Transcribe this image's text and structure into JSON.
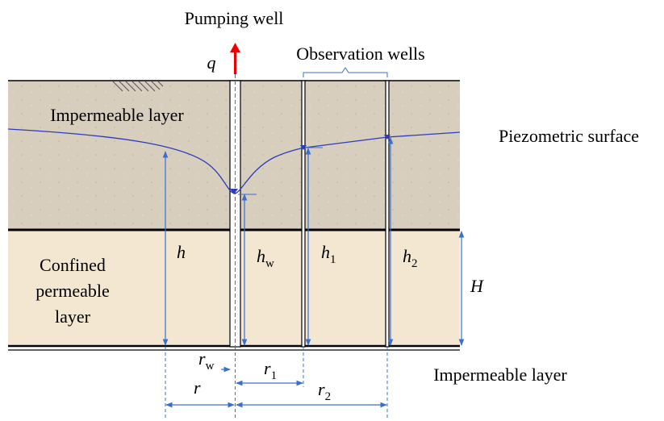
{
  "title": "Pumping well",
  "flow_symbol": "q",
  "observation_label": "Observation wells",
  "layers": {
    "top": "Impermeable layer",
    "confined": [
      "Confined",
      "permeable",
      "layer"
    ],
    "bottom": "Impermeable layer"
  },
  "surface_label": "Piezometric surface",
  "heights": [
    {
      "symbol": "h"
    },
    {
      "symbol": "h",
      "subscript": "w"
    },
    {
      "symbol": "h",
      "subscript": "1"
    },
    {
      "symbol": "h",
      "subscript": "2"
    }
  ],
  "thickness": "H",
  "radii": [
    {
      "symbol": "r",
      "subscript": "w"
    },
    {
      "symbol": "r",
      "subscript": "1"
    },
    {
      "symbol": "r"
    },
    {
      "symbol": "r",
      "subscript": "2"
    }
  ]
}
